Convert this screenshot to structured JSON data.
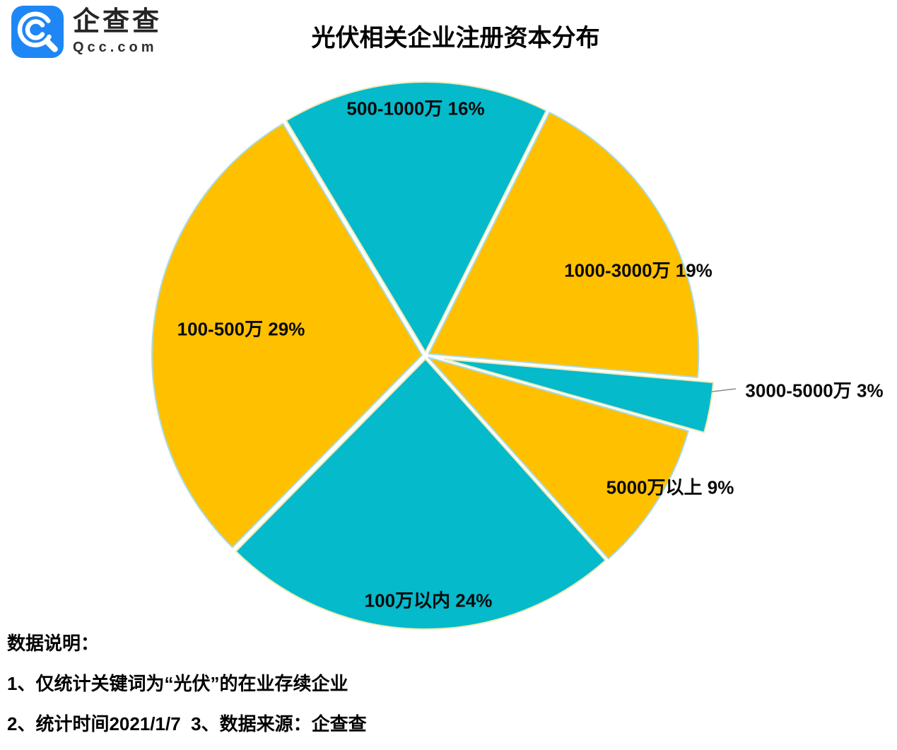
{
  "page": {
    "background": "#FFFFFF"
  },
  "header": {
    "logo": {
      "brand_cn": "企查查",
      "brand_en": "Qcc.com",
      "icon": "qcc-magnifier-icon",
      "icon_bg": "#1E87F5"
    },
    "title": "光伏相关企业注册资本分布"
  },
  "chart_data": {
    "type": "pie",
    "title": "光伏相关企业注册资本分布",
    "legend_position": "none",
    "start_angle_deg": -31,
    "colors": {
      "teal": "#04BACB",
      "yellow": "#FFC000",
      "teal_outline": "#EFEAB8",
      "yellow_outline": "#AADCE8"
    },
    "slices": [
      {
        "label": "500-1000万",
        "value": 16,
        "label_text": "500-1000万 16%",
        "color": "#04BACB",
        "stroke": "#EFEAB8",
        "exploded": false,
        "leader_line": false
      },
      {
        "label": "1000-3000万",
        "value": 19,
        "label_text": "1000-3000万 19%",
        "color": "#FFC000",
        "stroke": "#AADCE8",
        "exploded": false,
        "leader_line": false
      },
      {
        "label": "3000-5000万",
        "value": 3,
        "label_text": "3000-5000万 3%",
        "color": "#04BACB",
        "stroke": "#EFEAB8",
        "exploded": true,
        "leader_line": true
      },
      {
        "label": "5000万以上",
        "value": 9,
        "label_text": "5000万以上 9%",
        "color": "#FFC000",
        "stroke": "#AADCE8",
        "exploded": false,
        "leader_line": false
      },
      {
        "label": "100万以内",
        "value": 24,
        "label_text": "100万以内 24%",
        "color": "#04BACB",
        "stroke": "#EFEAB8",
        "exploded": false,
        "leader_line": false
      },
      {
        "label": "100-500万",
        "value": 29,
        "label_text": "100-500万 29%",
        "color": "#FFC000",
        "stroke": "#AADCE8",
        "exploded": false,
        "leader_line": false
      }
    ]
  },
  "footer": {
    "heading": "数据说明：",
    "notes": [
      "1、仅统计关键词为“光伏”的在业存续企业",
      "2、统计时间2021/1/7  3、数据来源：企查查"
    ]
  }
}
